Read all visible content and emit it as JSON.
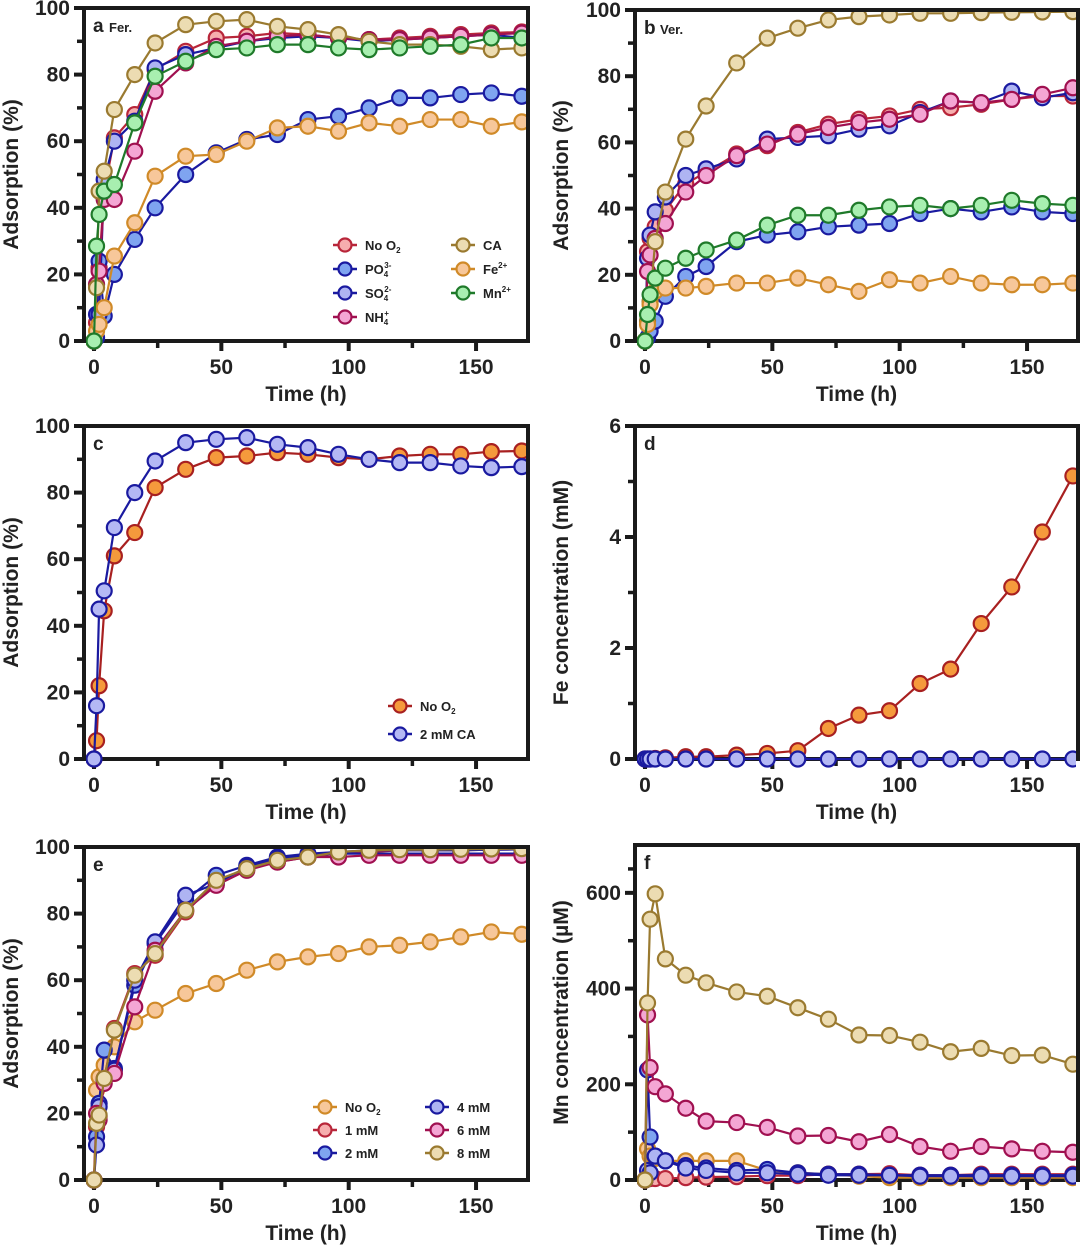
{
  "figure": {
    "description": "Six-panel figure of adsorption and dissolved metal concentrations over time"
  },
  "chart_data": [
    {
      "id": "a",
      "type": "line",
      "panel_label": "a",
      "panel_subtitle": "Fer.",
      "xlabel": "Time (h)",
      "ylabel": "Adsorption (%)",
      "xlim": [
        0,
        170
      ],
      "ylim": [
        0,
        100
      ],
      "xticks": [
        0,
        50,
        100,
        150
      ],
      "yticks": [
        0,
        20,
        40,
        60,
        80,
        100
      ],
      "grid": false,
      "legend_position": "bottom-right",
      "legend_columns": 2,
      "x": [
        0,
        1,
        2,
        4,
        8,
        16,
        24,
        36,
        48,
        60,
        72,
        84,
        96,
        108,
        120,
        132,
        144,
        156,
        168
      ],
      "series": [
        {
          "name": "No O2",
          "label_main": "No O",
          "label_sub": "2",
          "label_sup": "",
          "stroke": "#b8263a",
          "fill": "#f6aeae",
          "values": [
            0,
            5.5,
            22,
            45,
            61,
            68,
            81.5,
            87,
            91,
            91.5,
            92.5,
            92,
            91,
            90.5,
            91,
            91.5,
            92,
            92.5,
            92.8
          ]
        },
        {
          "name": "PO4 3-",
          "label_main": "PO",
          "label_sub": "4",
          "label_sup": "3-",
          "stroke": "#1a1aa0",
          "fill": "#7fa4f0",
          "values": [
            0,
            8,
            24,
            7.5,
            20,
            30.5,
            40,
            50,
            56.5,
            60.5,
            62,
            66.5,
            67.5,
            70,
            73,
            73,
            74,
            74.5,
            73.5
          ]
        },
        {
          "name": "SO4 2-",
          "label_main": "SO",
          "label_sub": "4",
          "label_sup": "2-",
          "stroke": "#1a1aa0",
          "fill": "#aeb4f2",
          "values": [
            0,
            1,
            8,
            48.5,
            60,
            66,
            82,
            86,
            88,
            90,
            91,
            91.5,
            91,
            90,
            90.5,
            91,
            91.5,
            92,
            91
          ]
        },
        {
          "name": "NH4 +",
          "label_main": "NH",
          "label_sub": "4",
          "label_sup": "+",
          "stroke": "#a01050",
          "fill": "#f4a6d4",
          "values": [
            0,
            17,
            21,
            42.5,
            42.5,
            57,
            75,
            83.5,
            88.5,
            90,
            91.5,
            92,
            91,
            90.5,
            90.5,
            91,
            91.5,
            92,
            92.5
          ]
        },
        {
          "name": "CA",
          "label_main": "CA",
          "label_sub": "",
          "label_sup": "",
          "stroke": "#9a7a30",
          "fill": "#ecdcb2",
          "values": [
            0,
            16,
            45,
            51,
            69.5,
            80,
            89.5,
            95,
            96,
            96.5,
            94.5,
            93.5,
            92,
            90,
            89,
            89,
            88.5,
            87.5,
            88
          ]
        },
        {
          "name": "Fe2+",
          "label_main": "Fe",
          "label_sub": "",
          "label_sup": "2+",
          "stroke": "#d08a28",
          "fill": "#f7c79a",
          "values": [
            0,
            3,
            5,
            10,
            25.5,
            35.5,
            49.5,
            55.5,
            56,
            60,
            64,
            64.5,
            63,
            65.5,
            64.5,
            66.5,
            66.5,
            64.5,
            65.8
          ]
        },
        {
          "name": "Mn2+",
          "label_main": "Mn",
          "label_sub": "",
          "label_sup": "2+",
          "stroke": "#1f7a2a",
          "fill": "#a8efb0",
          "values": [
            0,
            28.5,
            38,
            45,
            47,
            65.5,
            79.5,
            84,
            87.5,
            88,
            89,
            89,
            88,
            87.5,
            88,
            88.5,
            89,
            91,
            91
          ]
        }
      ]
    },
    {
      "id": "b",
      "type": "line",
      "panel_label": "b",
      "panel_subtitle": "Ver.",
      "xlabel": "Time (h)",
      "ylabel": "Adsorption (%)",
      "xlim": [
        0,
        170
      ],
      "ylim": [
        0,
        100
      ],
      "xticks": [
        0,
        50,
        100,
        150
      ],
      "yticks": [
        0,
        20,
        40,
        60,
        80,
        100
      ],
      "grid": false,
      "legend_position": "none",
      "x": [
        0,
        1,
        2,
        4,
        8,
        16,
        24,
        36,
        48,
        60,
        72,
        84,
        96,
        108,
        120,
        132,
        144,
        156,
        168
      ],
      "series": [
        {
          "name": "No O2",
          "stroke": "#b8263a",
          "fill": "#f6aeae",
          "values": [
            0,
            27,
            31,
            34.5,
            39.5,
            47.5,
            51,
            56.5,
            59,
            63,
            65.5,
            67,
            68,
            70,
            70.5,
            71.5,
            73,
            74,
            74
          ]
        },
        {
          "name": "PO4 3-",
          "stroke": "#1a1aa0",
          "fill": "#7fa4f0",
          "values": [
            0,
            1,
            3,
            6,
            13.5,
            19.5,
            22.5,
            30,
            32,
            33,
            34.5,
            35,
            35.5,
            38.5,
            40,
            39,
            40.5,
            39,
            38.5
          ]
        },
        {
          "name": "SO4 2-",
          "stroke": "#1a1aa0",
          "fill": "#aeb4f2",
          "values": [
            0,
            25,
            32,
            39,
            43.5,
            50,
            52,
            55,
            61,
            61.5,
            62,
            64,
            65,
            69,
            72.5,
            72,
            75.5,
            73.5,
            75
          ]
        },
        {
          "name": "NH4 +",
          "stroke": "#a01050",
          "fill": "#f4a6d4",
          "values": [
            0,
            21,
            26,
            31,
            35.5,
            45,
            50,
            56,
            59.5,
            62.5,
            64.5,
            66,
            67,
            68.5,
            72.5,
            72,
            73,
            74.5,
            76.5
          ]
        },
        {
          "name": "CA",
          "stroke": "#9a7a30",
          "fill": "#ecdcb2",
          "values": [
            0,
            6,
            12,
            30,
            45,
            61,
            71,
            84,
            91.5,
            94.5,
            97,
            98,
            98.5,
            99,
            99,
            99.2,
            99.3,
            99.4,
            99.5
          ]
        },
        {
          "name": "Fe2+",
          "stroke": "#d08a28",
          "fill": "#f7c79a",
          "values": [
            0,
            5,
            11,
            15,
            16,
            16,
            16.5,
            17.5,
            17.5,
            19,
            17,
            15,
            18.5,
            17.5,
            19.5,
            17.5,
            17,
            17,
            17.5
          ]
        },
        {
          "name": "Mn2+",
          "stroke": "#1f7a2a",
          "fill": "#a8efb0",
          "values": [
            0,
            8,
            14,
            19,
            22,
            25,
            27.5,
            30.5,
            35,
            38,
            38,
            39.5,
            40.5,
            41,
            40,
            41,
            42.5,
            41.5,
            41
          ]
        }
      ]
    },
    {
      "id": "c",
      "type": "line",
      "panel_label": "c",
      "panel_subtitle": "",
      "xlabel": "Time (h)",
      "ylabel": "Adsorption (%)",
      "xlim": [
        0,
        170
      ],
      "ylim": [
        0,
        100
      ],
      "xticks": [
        0,
        50,
        100,
        150
      ],
      "yticks": [
        0,
        20,
        40,
        60,
        80,
        100
      ],
      "grid": false,
      "legend_position": "bottom-right",
      "legend_columns": 1,
      "x": [
        0,
        1,
        2,
        4,
        8,
        16,
        24,
        36,
        48,
        60,
        72,
        84,
        96,
        108,
        120,
        132,
        144,
        156,
        168
      ],
      "series": [
        {
          "name": "No O2",
          "label_main": "No O",
          "label_sub": "2",
          "label_sup": "",
          "stroke": "#a82020",
          "fill": "#f59a3c",
          "values": [
            0,
            5.5,
            22,
            44.5,
            61,
            68,
            81.5,
            87,
            90.5,
            91,
            92,
            91.5,
            90.5,
            90,
            91,
            91.5,
            91.5,
            92.3,
            92.5
          ]
        },
        {
          "name": "2 mM CA",
          "label_main": "2 mM CA",
          "label_sub": "",
          "label_sup": "",
          "stroke": "#1a1aa0",
          "fill": "#b4b8f4",
          "values": [
            0,
            16,
            45,
            50.5,
            69.5,
            80,
            89.5,
            95,
            96,
            96.5,
            94.5,
            93.5,
            91.5,
            90,
            89,
            89,
            88,
            87.5,
            87.8
          ]
        }
      ]
    },
    {
      "id": "d",
      "type": "line",
      "panel_label": "d",
      "panel_subtitle": "",
      "xlabel": "Time (h)",
      "ylabel": "Fe concentration (mM)",
      "xlim": [
        0,
        170
      ],
      "ylim": [
        0,
        6
      ],
      "xticks": [
        0,
        50,
        100,
        150
      ],
      "yticks": [
        0,
        2,
        4,
        6
      ],
      "grid": false,
      "legend_position": "none",
      "x": [
        0,
        1,
        2,
        4,
        8,
        16,
        24,
        36,
        48,
        60,
        72,
        84,
        96,
        108,
        120,
        132,
        144,
        156,
        168
      ],
      "series": [
        {
          "name": "No O2",
          "stroke": "#a82020",
          "fill": "#f59a3c",
          "values": [
            0,
            0,
            0,
            0.01,
            0.02,
            0.04,
            0.04,
            0.07,
            0.1,
            0.15,
            0.55,
            0.79,
            0.87,
            1.36,
            1.62,
            2.44,
            3.1,
            4.09,
            5.1
          ]
        },
        {
          "name": "2 mM CA",
          "stroke": "#1a1aa0",
          "fill": "#b4b8f4",
          "values": [
            0,
            0,
            0,
            0,
            0,
            0,
            0,
            0,
            0,
            0,
            0,
            0,
            0,
            0,
            0,
            0,
            0,
            0,
            0
          ]
        }
      ]
    },
    {
      "id": "e",
      "type": "line",
      "panel_label": "e",
      "panel_subtitle": "",
      "xlabel": "Time (h)",
      "ylabel": "Adsorption (%)",
      "xlim": [
        0,
        170
      ],
      "ylim": [
        0,
        100
      ],
      "xticks": [
        0,
        50,
        100,
        150
      ],
      "yticks": [
        0,
        20,
        40,
        60,
        80,
        100
      ],
      "grid": false,
      "legend_position": "bottom-right",
      "legend_columns": 2,
      "x": [
        0,
        1,
        2,
        4,
        8,
        16,
        24,
        36,
        48,
        60,
        72,
        84,
        96,
        108,
        120,
        132,
        144,
        156,
        168
      ],
      "series": [
        {
          "name": "No O2",
          "label_main": "No O",
          "label_sub": "2",
          "label_sup": "",
          "stroke": "#d08a28",
          "fill": "#f7c79a",
          "values": [
            0,
            27,
            31,
            34.5,
            40,
            47.5,
            51,
            56,
            59,
            63,
            65.5,
            67,
            68,
            70,
            70.5,
            71.5,
            73,
            74.5,
            73.8
          ]
        },
        {
          "name": "1 mM",
          "label_main": "1 mM",
          "label_sub": "",
          "label_sup": "",
          "stroke": "#b8263a",
          "fill": "#f6aeae",
          "values": [
            0,
            16,
            19,
            30.5,
            45.5,
            62,
            67.5,
            80.5,
            89.5,
            93.5,
            95.5,
            97,
            98,
            98.5,
            99,
            99,
            99,
            99.2,
            99.3
          ]
        },
        {
          "name": "2 mM",
          "label_main": "2 mM",
          "label_sub": "",
          "label_sup": "",
          "stroke": "#1a1aa0",
          "fill": "#7fa4f0",
          "values": [
            0,
            13,
            23,
            39,
            33.5,
            58.5,
            71,
            84,
            91.5,
            94.5,
            97,
            98,
            98.5,
            99,
            99,
            99,
            99,
            99.2,
            99.3
          ]
        },
        {
          "name": "4 mM",
          "label_main": "4 mM",
          "label_sub": "",
          "label_sup": "",
          "stroke": "#1a1aa0",
          "fill": "#aeb4f2",
          "values": [
            0,
            10.5,
            22,
            30,
            33,
            60,
            71.5,
            85.5,
            89,
            94,
            96.5,
            97.5,
            98,
            98,
            98,
            98,
            98,
            98,
            98
          ]
        },
        {
          "name": "6 mM",
          "label_main": "6 mM",
          "label_sub": "",
          "label_sup": "",
          "stroke": "#a01050",
          "fill": "#f4a6d4",
          "values": [
            0,
            20,
            18,
            29,
            32,
            52,
            69,
            81,
            88.5,
            93,
            95.5,
            97,
            97,
            97.5,
            97.5,
            97.5,
            97.5,
            97.5,
            97.5
          ]
        },
        {
          "name": "8 mM",
          "label_main": "8 mM",
          "label_sub": "",
          "label_sup": "",
          "stroke": "#9a7a30",
          "fill": "#ecdcb2",
          "values": [
            0,
            17,
            19.5,
            30.5,
            45,
            61.5,
            68,
            81,
            90,
            93.5,
            96,
            97,
            98.5,
            99,
            99.2,
            99.2,
            99.3,
            99.4,
            99.5
          ]
        }
      ]
    },
    {
      "id": "f",
      "type": "line",
      "panel_label": "f",
      "panel_subtitle": "",
      "xlabel": "Time (h)",
      "ylabel": "Mn concentration (µM)",
      "xlim": [
        0,
        170
      ],
      "ylim": [
        0,
        700
      ],
      "xticks": [
        0,
        50,
        100,
        150
      ],
      "yticks": [
        0,
        200,
        400,
        600
      ],
      "grid": false,
      "legend_position": "none",
      "x": [
        0,
        1,
        2,
        4,
        8,
        16,
        24,
        36,
        48,
        60,
        72,
        84,
        96,
        108,
        120,
        132,
        144,
        156,
        168
      ],
      "series": [
        {
          "name": "No O2",
          "stroke": "#d08a28",
          "fill": "#f7c79a",
          "values": [
            0,
            65,
            50,
            45,
            40,
            40,
            40,
            40,
            20,
            15,
            12,
            8,
            5,
            5,
            5,
            5,
            5,
            5,
            5
          ]
        },
        {
          "name": "1 mM",
          "stroke": "#b8263a",
          "fill": "#f6aeae",
          "values": [
            0,
            2,
            3,
            3,
            3,
            5,
            6,
            7,
            9,
            9,
            12,
            12,
            13,
            10,
            10,
            12,
            12,
            12,
            12
          ]
        },
        {
          "name": "2 mM",
          "stroke": "#1a1aa0",
          "fill": "#7fa4f0",
          "values": [
            0,
            230,
            90,
            50,
            40,
            30,
            25,
            20,
            22,
            15,
            12,
            12,
            10,
            10,
            10,
            10,
            10,
            10,
            10
          ]
        },
        {
          "name": "4 mM",
          "stroke": "#1a1aa0",
          "fill": "#aeb4f2",
          "values": [
            0,
            20,
            15,
            50,
            40,
            25,
            20,
            15,
            15,
            12,
            10,
            10,
            10,
            8,
            8,
            8,
            8,
            8,
            8
          ]
        },
        {
          "name": "6 mM",
          "stroke": "#a01050",
          "fill": "#f4a6d4",
          "values": [
            0,
            345,
            235,
            195,
            180,
            150,
            123,
            120,
            110,
            92,
            93,
            80,
            95,
            70,
            60,
            70,
            65,
            60,
            58
          ]
        },
        {
          "name": "8 mM",
          "stroke": "#9a7a30",
          "fill": "#ecdcb2",
          "values": [
            0,
            370,
            545,
            598,
            462,
            428,
            412,
            393,
            384,
            360,
            336,
            303,
            302,
            288,
            268,
            275,
            260,
            261,
            242
          ]
        }
      ]
    }
  ]
}
